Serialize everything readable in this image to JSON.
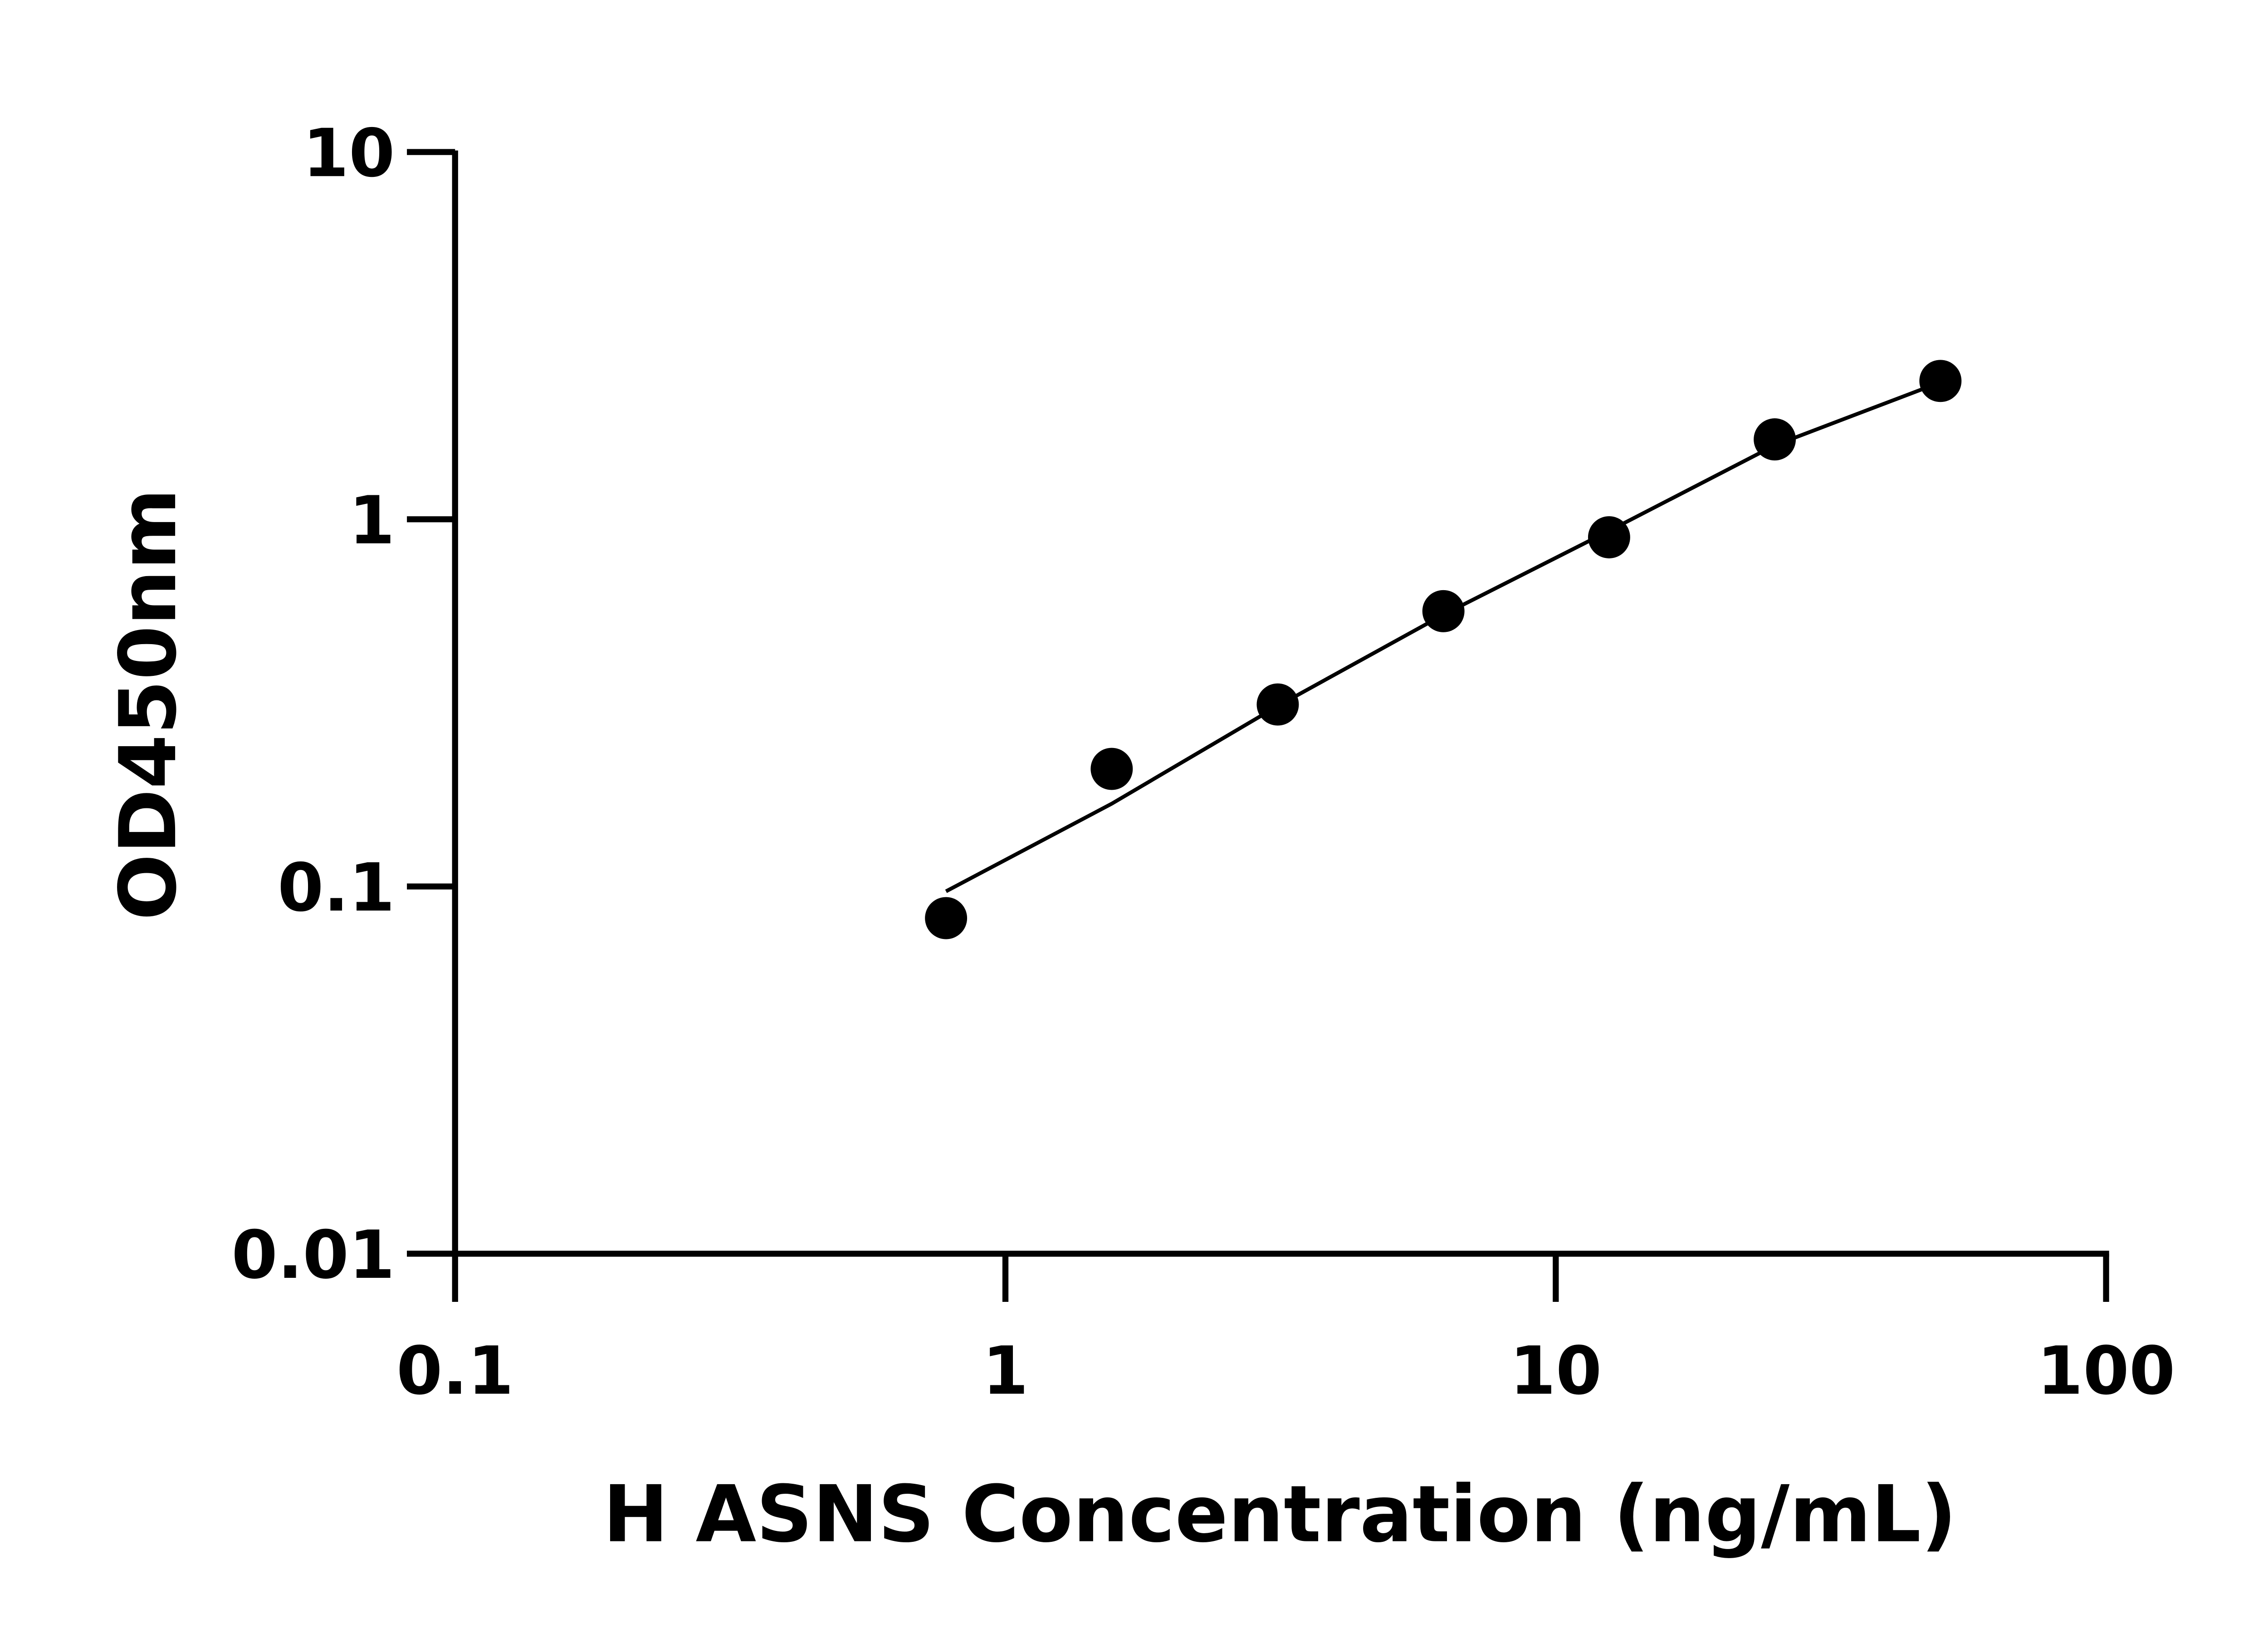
{
  "chart_data": {
    "type": "scatter",
    "title": "",
    "xlabel": "H ASNS Concentration (ng/mL)",
    "ylabel": "OD450nm",
    "x_scale": "log",
    "y_scale": "log",
    "xlim": [
      0.1,
      100
    ],
    "ylim": [
      0.01,
      10
    ],
    "x_ticks": [
      "0.1",
      "1",
      "10",
      "100"
    ],
    "y_ticks": [
      "0.01",
      "0.1",
      "1",
      "10"
    ],
    "grid": false,
    "legend": "none",
    "series": [
      {
        "x": [
          0.78,
          1.56,
          3.125,
          6.25,
          12.5,
          25,
          50
        ],
        "y": [
          0.082,
          0.209,
          0.313,
          0.562,
          0.893,
          1.65,
          2.38
        ],
        "marker": "circle",
        "color": "#000000"
      }
    ],
    "fit_curve": {
      "x": [
        0.78,
        1.56,
        3.125,
        6.25,
        12.5,
        25,
        50
      ],
      "y": [
        0.097,
        0.168,
        0.31,
        0.55,
        0.93,
        1.59,
        2.36
      ],
      "color": "#000000"
    }
  }
}
